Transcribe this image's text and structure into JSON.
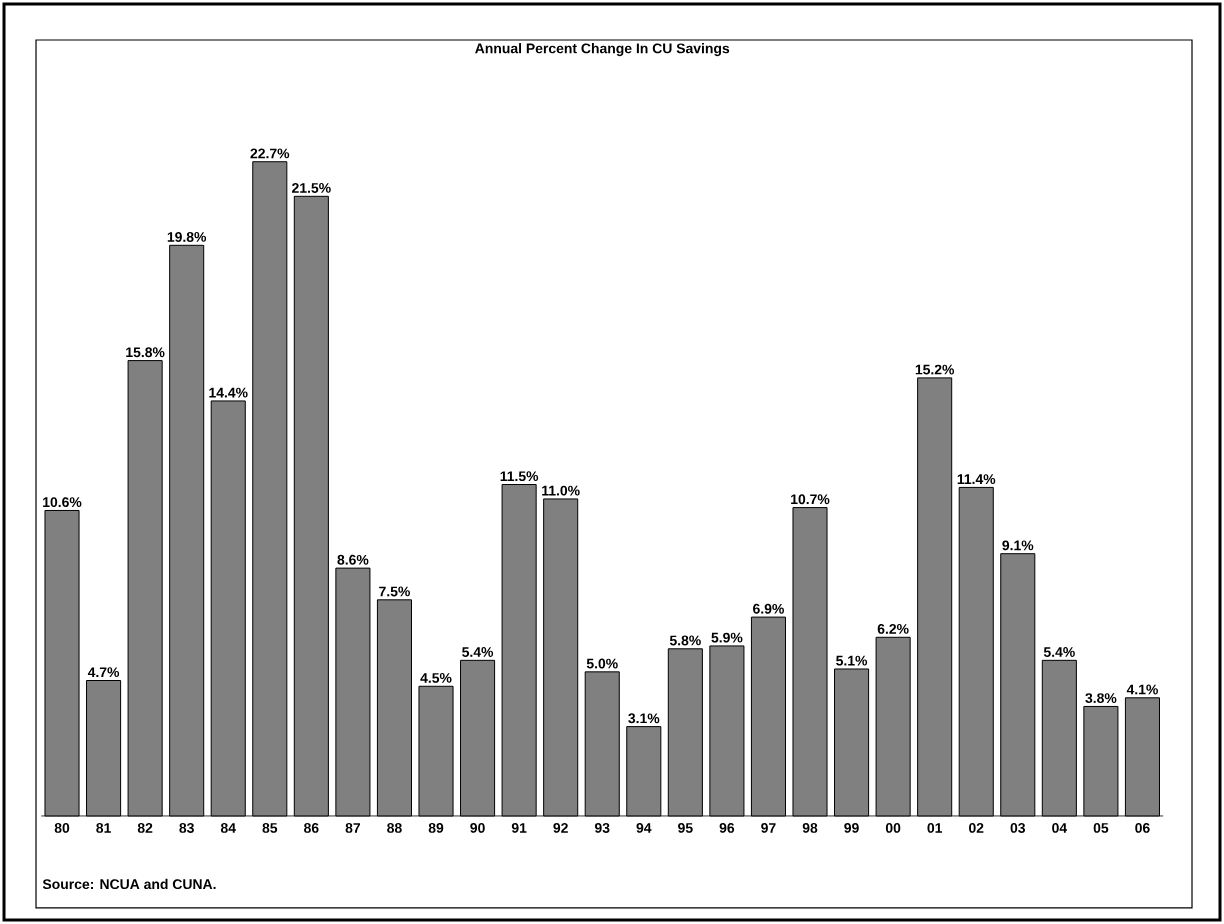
{
  "chart_data": {
    "type": "bar",
    "title": "Annual Percent Change In CU Savings",
    "categories": [
      "80",
      "81",
      "82",
      "83",
      "84",
      "85",
      "86",
      "87",
      "88",
      "89",
      "90",
      "91",
      "92",
      "93",
      "94",
      "95",
      "96",
      "97",
      "98",
      "99",
      "00",
      "01",
      "02",
      "03",
      "04",
      "05",
      "06"
    ],
    "values": [
      10.6,
      4.7,
      15.8,
      19.8,
      14.4,
      22.7,
      21.5,
      8.6,
      7.5,
      4.5,
      5.4,
      11.5,
      11.0,
      5.0,
      3.1,
      5.8,
      5.9,
      6.9,
      10.7,
      5.1,
      6.2,
      15.2,
      11.4,
      9.1,
      5.4,
      3.8,
      4.1
    ],
    "value_labels": [
      "10.6%",
      "4.7%",
      "15.8%",
      "19.8%",
      "14.4%",
      "22.7%",
      "21.5%",
      "8.6%",
      "7.5%",
      "4.5%",
      "5.4%",
      "11.5%",
      "11.0%",
      "5.0%",
      "3.1%",
      "5.8%",
      "5.9%",
      "6.9%",
      "10.7%",
      "5.1%",
      "6.2%",
      "15.2%",
      "11.4%",
      "9.1%",
      "5.4%",
      "3.8%",
      "4.1%"
    ],
    "color": "#808080",
    "annotations": [
      "Source: NCUA and CUNA."
    ]
  }
}
